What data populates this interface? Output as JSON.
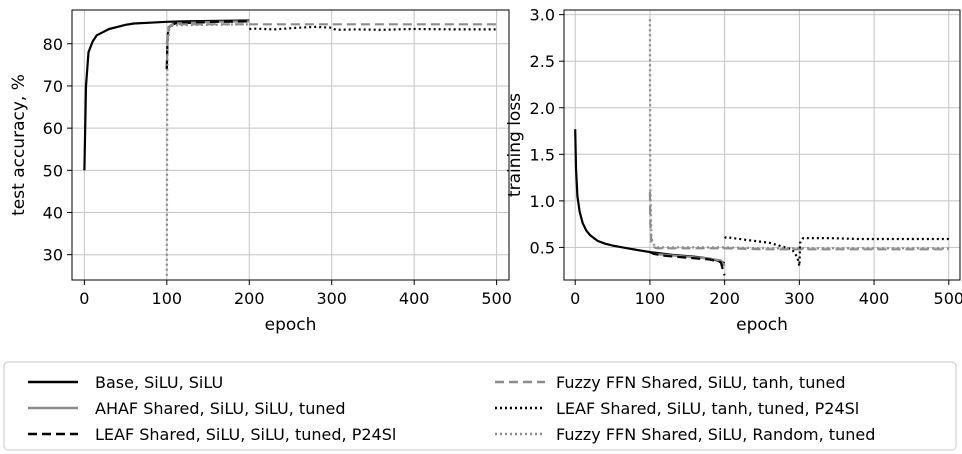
{
  "chart_data": [
    {
      "type": "line",
      "xlabel": "epoch",
      "ylabel": "test accuracy, %",
      "xlim": [
        -15,
        515
      ],
      "ylim": [
        24,
        88
      ],
      "xticks": [
        0,
        100,
        200,
        300,
        400,
        500
      ],
      "yticks": [
        30,
        40,
        50,
        60,
        70,
        80
      ],
      "grid": true,
      "series": [
        {
          "ref": "base",
          "x": [
            0,
            2,
            5,
            10,
            15,
            20,
            30,
            40,
            50,
            60,
            80,
            100,
            120,
            150,
            200
          ],
          "y": [
            50,
            70,
            78,
            80.5,
            82,
            82.5,
            83.5,
            84,
            84.5,
            84.8,
            85,
            85.2,
            85.3,
            85.4,
            85.5
          ]
        },
        {
          "ref": "ahaf",
          "x": [
            100,
            101,
            103,
            106,
            110,
            130,
            160,
            200
          ],
          "y": [
            74,
            82,
            84,
            84.5,
            84.8,
            85,
            85.2,
            85.3
          ]
        },
        {
          "ref": "leaf_silu",
          "x": [
            100,
            101,
            103,
            106,
            110,
            130,
            160,
            200
          ],
          "y": [
            74,
            82,
            84,
            84.5,
            84.8,
            85,
            85.2,
            85.3
          ]
        },
        {
          "ref": "fuzzy_tanh",
          "x": [
            100,
            102,
            106,
            110,
            150,
            200,
            250,
            300,
            350,
            400,
            450,
            500
          ],
          "y": [
            80,
            84,
            84.5,
            84.6,
            84.6,
            84.6,
            84.6,
            84.6,
            84.6,
            84.6,
            84.6,
            84.6
          ]
        },
        {
          "ref": "leaf_tanh",
          "x": [
            200,
            205,
            230,
            260,
            280,
            300,
            305,
            330,
            360,
            400,
            450,
            500
          ],
          "y": [
            83.5,
            83.6,
            83.4,
            83.8,
            84,
            83.8,
            83.3,
            83.4,
            83.3,
            83.5,
            83.4,
            83.4
          ]
        },
        {
          "ref": "fuzzy_random",
          "x": [
            100,
            100.5,
            101,
            103,
            106,
            110,
            150,
            200
          ],
          "y": [
            25,
            70,
            80,
            83.5,
            84.2,
            84.4,
            84.5,
            84.6
          ]
        }
      ]
    },
    {
      "type": "line",
      "xlabel": "epoch",
      "ylabel": "training loss",
      "xlim": [
        -15,
        515
      ],
      "ylim": [
        0.15,
        3.05
      ],
      "xticks": [
        0,
        100,
        200,
        300,
        400,
        500
      ],
      "yticks": [
        0.5,
        1.0,
        1.5,
        2.0,
        2.5,
        3.0
      ],
      "ytick_labels": [
        "0.5",
        "1.0",
        "1.5",
        "2.0",
        "2.5",
        "3.0"
      ],
      "grid": true,
      "series": [
        {
          "ref": "base",
          "x": [
            0,
            1,
            3,
            6,
            10,
            15,
            20,
            30,
            40,
            50,
            70,
            100,
            130,
            160,
            180,
            195,
            200
          ],
          "y": [
            1.77,
            1.35,
            1.05,
            0.88,
            0.76,
            0.68,
            0.63,
            0.57,
            0.54,
            0.52,
            0.49,
            0.45,
            0.42,
            0.4,
            0.38,
            0.35,
            0.33
          ]
        },
        {
          "ref": "ahaf",
          "x": [
            100,
            105,
            120,
            150,
            180,
            195,
            200
          ],
          "y": [
            0.45,
            0.43,
            0.42,
            0.4,
            0.38,
            0.36,
            0.3
          ]
        },
        {
          "ref": "leaf_silu",
          "x": [
            100,
            105,
            120,
            150,
            180,
            195,
            198,
            200
          ],
          "y": [
            0.45,
            0.43,
            0.41,
            0.39,
            0.37,
            0.34,
            0.25,
            0.2
          ]
        },
        {
          "ref": "fuzzy_tanh",
          "x": [
            100,
            100.5,
            102,
            106,
            110,
            150,
            200,
            250,
            300,
            350,
            400,
            450,
            500
          ],
          "y": [
            1.1,
            0.75,
            0.55,
            0.5,
            0.49,
            0.49,
            0.49,
            0.48,
            0.48,
            0.48,
            0.48,
            0.48,
            0.48
          ]
        },
        {
          "ref": "leaf_tanh",
          "x": [
            200,
            202,
            230,
            260,
            290,
            297,
            300,
            301,
            305,
            340,
            380,
            420,
            460,
            500
          ],
          "y": [
            0.6,
            0.61,
            0.58,
            0.55,
            0.48,
            0.4,
            0.3,
            0.55,
            0.6,
            0.6,
            0.59,
            0.59,
            0.59,
            0.59
          ]
        },
        {
          "ref": "fuzzy_random",
          "x": [
            100,
            100.5,
            102,
            106,
            110,
            150,
            200,
            250,
            300,
            350,
            400,
            450,
            500
          ],
          "y": [
            2.95,
            1.2,
            0.6,
            0.52,
            0.5,
            0.5,
            0.5,
            0.49,
            0.49,
            0.49,
            0.49,
            0.49,
            0.49
          ]
        }
      ]
    }
  ],
  "legend": {
    "placement": "bottom",
    "entries": [
      {
        "ref": "base",
        "label": "Base, SiLU, SiLU",
        "color": "#000000",
        "dash": "solid"
      },
      {
        "ref": "ahaf",
        "label": "AHAF Shared, SiLU, SiLU, tuned",
        "color": "#8c8c8c",
        "dash": "solid"
      },
      {
        "ref": "leaf_silu",
        "label": "LEAF Shared, SiLU, SiLU, tuned, P24Sl",
        "color": "#000000",
        "dash": "dashed"
      },
      {
        "ref": "fuzzy_tanh",
        "label": "Fuzzy FFN Shared, SiLU, tanh, tuned",
        "color": "#8c8c8c",
        "dash": "dashed"
      },
      {
        "ref": "leaf_tanh",
        "label": "LEAF Shared, SiLU, tanh, tuned, P24Sl",
        "color": "#000000",
        "dash": "dotted"
      },
      {
        "ref": "fuzzy_random",
        "label": "Fuzzy FFN Shared, SiLU, Random, tuned",
        "color": "#8c8c8c",
        "dash": "dotted"
      }
    ]
  }
}
